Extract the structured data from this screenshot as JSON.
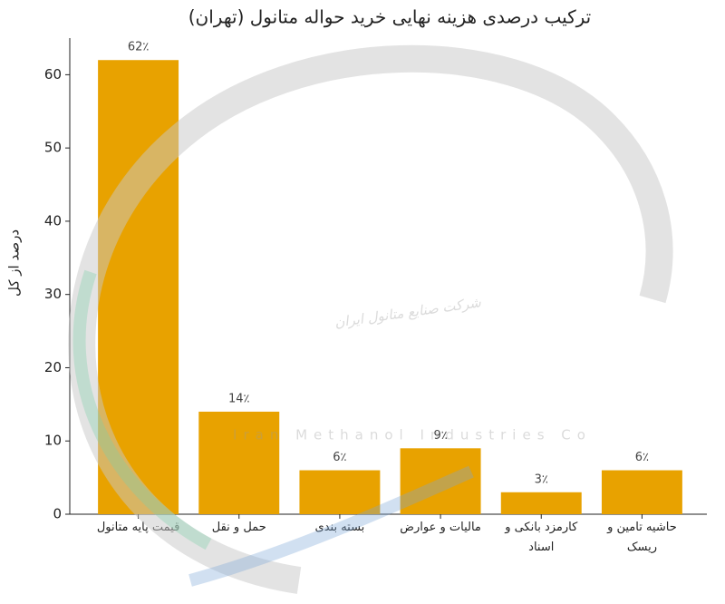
{
  "chart_data": {
    "type": "bar",
    "title": "ترکیب درصدی هزینه نهایی خرید حواله متانول (تهران)",
    "y_label": "درصد از کل",
    "categories": [
      "قیمت پایه متانول",
      "حمل و نقل",
      "بسته بندی",
      "مالیات و عوارض",
      "کارمزد بانکی و\nاسناد",
      "حاشیه تامین و\nریسک"
    ],
    "values": [
      62,
      14,
      6,
      9,
      3,
      6
    ],
    "value_labels": [
      "62٪",
      "14٪",
      "6٪",
      "9٪",
      "3٪",
      "6٪"
    ],
    "color": "#e8a200",
    "ylim": [
      0,
      65
    ],
    "yticks": [
      0,
      10,
      20,
      30,
      40,
      50,
      60
    ],
    "grid": false,
    "watermark": [
      "شرکت صنایع متانول ایران",
      "Iran Methanol Industries Co"
    ]
  }
}
